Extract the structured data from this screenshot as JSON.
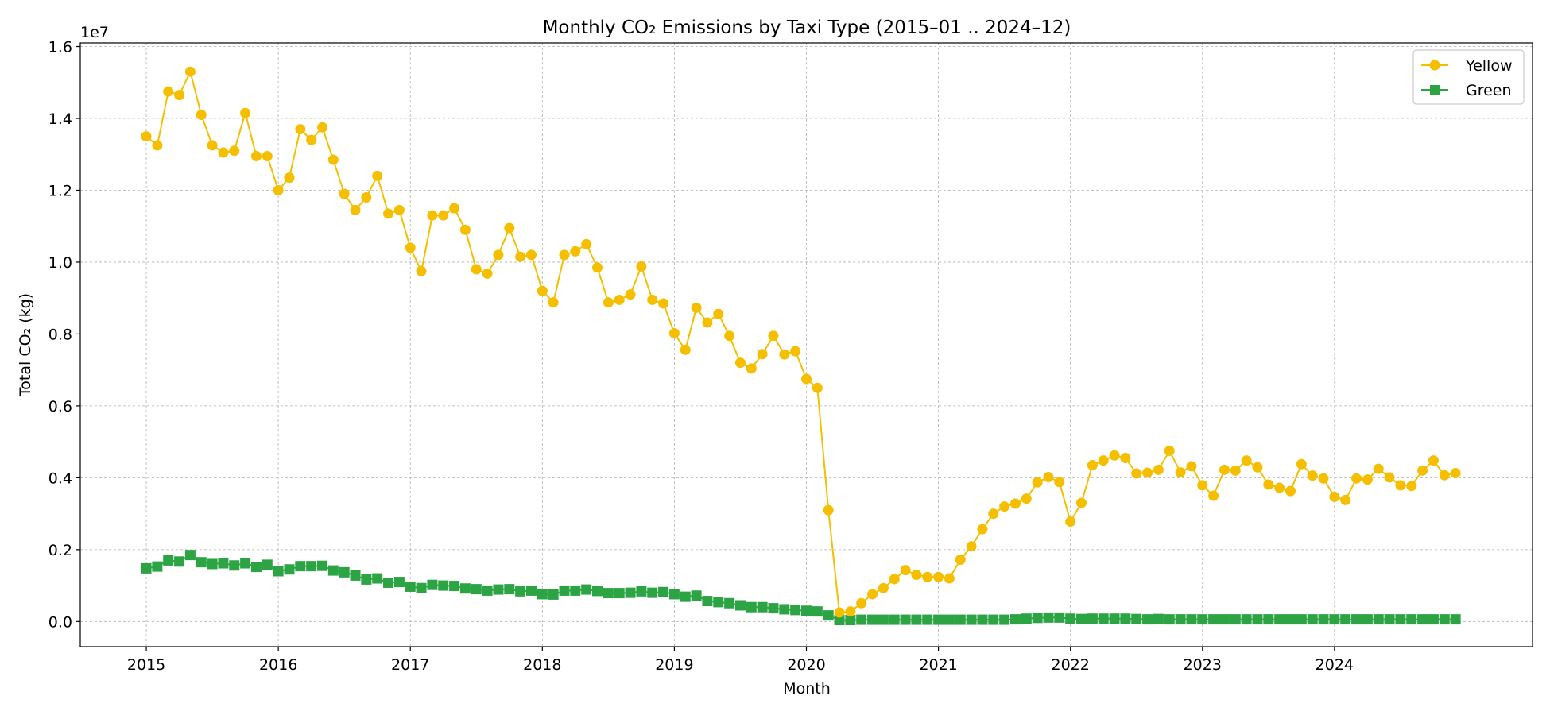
{
  "chart_data": {
    "type": "line",
    "title": "Monthly CO₂ Emissions by Taxi Type (2015–01 .. 2024–12)",
    "xlabel": "Month",
    "ylabel": "Total CO₂ (kg)",
    "y_offset_label": "1e7",
    "y_scale": 10000000,
    "ylim": [
      -0.07,
      1.61
    ],
    "xlim": [
      "2014-07-01",
      "2025-07-01"
    ],
    "y_ticks": [
      "0.0",
      "0.2",
      "0.4",
      "0.6",
      "0.8",
      "1.0",
      "1.2",
      "1.4",
      "1.6"
    ],
    "x_ticks": [
      "2015",
      "2016",
      "2017",
      "2018",
      "2019",
      "2020",
      "2021",
      "2022",
      "2023",
      "2024"
    ],
    "grid": true,
    "legend_position": "top-right",
    "x_start": "2015-01",
    "series": [
      {
        "name": "Yellow",
        "color": "#f5bf00",
        "marker": "circle",
        "values": [
          13500000,
          13250000,
          14750000,
          14650000,
          15300000,
          14100000,
          13250000,
          13050000,
          13100000,
          14150000,
          12950000,
          12950000,
          12000000,
          12350000,
          13700000,
          13400000,
          13750000,
          12850000,
          11900000,
          11450000,
          11800000,
          12400000,
          11350000,
          11450000,
          10400000,
          9750000,
          11300000,
          11300000,
          11500000,
          10900000,
          9800000,
          9680000,
          10200000,
          10950000,
          10150000,
          10200000,
          9200000,
          8880000,
          10200000,
          10300000,
          10500000,
          9850000,
          8880000,
          8950000,
          9100000,
          9880000,
          8950000,
          8850000,
          8020000,
          7560000,
          8730000,
          8320000,
          8560000,
          7950000,
          7200000,
          7040000,
          7440000,
          7950000,
          7430000,
          7520000,
          6750000,
          6500000,
          3100000,
          250000,
          280000,
          510000,
          760000,
          930000,
          1180000,
          1430000,
          1300000,
          1240000,
          1240000,
          1200000,
          1720000,
          2090000,
          2570000,
          3000000,
          3200000,
          3280000,
          3420000,
          3870000,
          4020000,
          3880000,
          2780000,
          3300000,
          4350000,
          4480000,
          4620000,
          4550000,
          4120000,
          4140000,
          4220000,
          4750000,
          4150000,
          4320000,
          3790000,
          3500000,
          4220000,
          4200000,
          4480000,
          4290000,
          3810000,
          3720000,
          3630000,
          4380000,
          4060000,
          3980000,
          3470000,
          3380000,
          3980000,
          3950000,
          4250000,
          4010000,
          3790000,
          3770000,
          4200000,
          4480000,
          4070000,
          4130000
        ]
      },
      {
        "name": "Green",
        "color": "#2ca444",
        "marker": "square",
        "values": [
          1480000,
          1530000,
          1700000,
          1670000,
          1850000,
          1650000,
          1600000,
          1620000,
          1560000,
          1620000,
          1520000,
          1580000,
          1400000,
          1450000,
          1540000,
          1540000,
          1550000,
          1420000,
          1370000,
          1280000,
          1170000,
          1200000,
          1080000,
          1100000,
          970000,
          930000,
          1020000,
          1000000,
          990000,
          920000,
          900000,
          860000,
          890000,
          900000,
          840000,
          860000,
          760000,
          750000,
          860000,
          860000,
          890000,
          850000,
          790000,
          790000,
          800000,
          840000,
          800000,
          820000,
          760000,
          690000,
          720000,
          570000,
          540000,
          510000,
          450000,
          400000,
          400000,
          370000,
          340000,
          320000,
          300000,
          280000,
          170000,
          40000,
          40000,
          50000,
          50000,
          50000,
          50000,
          50000,
          50000,
          50000,
          50000,
          50000,
          50000,
          50000,
          50000,
          50000,
          50000,
          60000,
          80000,
          100000,
          110000,
          110000,
          80000,
          70000,
          80000,
          80000,
          80000,
          80000,
          70000,
          60000,
          70000,
          60000,
          60000,
          60000,
          60000,
          60000,
          60000,
          60000,
          60000,
          60000,
          60000,
          60000,
          60000,
          60000,
          60000,
          60000,
          60000,
          60000,
          60000,
          60000,
          60000,
          60000,
          60000,
          60000,
          60000,
          60000,
          60000,
          60000
        ]
      }
    ]
  }
}
